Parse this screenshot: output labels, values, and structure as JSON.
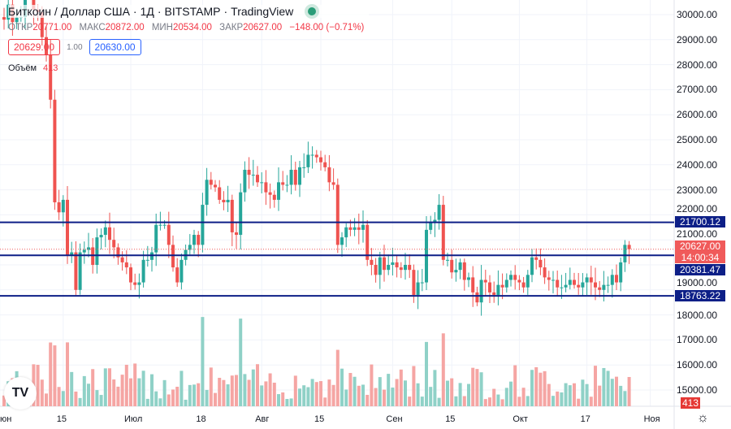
{
  "header": {
    "title": "Биткоин / Доллар США",
    "interval": "1Д",
    "exchange": "BITSTAMP",
    "source": "TradingView",
    "sep": "·"
  },
  "ohlc": {
    "open_label": "ОТКР",
    "open": "20771.00",
    "high_label": "МАКС",
    "high": "20872.00",
    "low_label": "МИН",
    "low": "20534.00",
    "close_label": "ЗАКР",
    "close": "20627.00",
    "change": "−148.00 (−0.71%)"
  },
  "quote": {
    "sell": "20629.00",
    "spread": "1.00",
    "buy": "20630.00"
  },
  "volume": {
    "label": "Объём",
    "value": "413",
    "axis_value": "413"
  },
  "price_axis": [
    "30000.00",
    "29000.00",
    "28000.00",
    "27000.00",
    "26000.00",
    "25000.00",
    "24000.00",
    "23000.00",
    "22000.00",
    "21000.00",
    "19000.00",
    "18000.00",
    "17000.00",
    "16000.00",
    "15000.00"
  ],
  "levels": [
    {
      "price": 21700.12,
      "label": "21700.12"
    },
    {
      "price": 20381.47,
      "label": "20381.47"
    },
    {
      "price": 18763.22,
      "label": "18763.22"
    }
  ],
  "last_price": {
    "price": 20627,
    "label": "20627.00",
    "countdown": "14:00:34"
  },
  "time_axis": [
    {
      "label": "юн",
      "day": -1
    },
    {
      "label": "15",
      "day": 14
    },
    {
      "label": "Июл",
      "day": 30
    },
    {
      "label": "18",
      "day": 47
    },
    {
      "label": "Авг",
      "day": 61
    },
    {
      "label": "15",
      "day": 75
    },
    {
      "label": "Сен",
      "day": 92
    },
    {
      "label": "15",
      "day": 106
    },
    {
      "label": "Окт",
      "day": 122
    },
    {
      "label": "17",
      "day": 138
    },
    {
      "label": "Ноя",
      "day": 153
    }
  ],
  "colors": {
    "up": "#26a69a",
    "down": "#ef5350",
    "level": "#0d1f87"
  },
  "chart_data": {
    "type": "candlestick",
    "start_close": 29900,
    "closes": [
      29800,
      30400,
      29700,
      29900,
      29900,
      31300,
      31100,
      30200,
      30100,
      29100,
      28400,
      26600,
      22500,
      22100,
      22600,
      20400,
      20500,
      19000,
      20500,
      20600,
      20700,
      20000,
      21100,
      21200,
      21500,
      21000,
      20700,
      20300,
      20100,
      19900,
      19300,
      19200,
      19300,
      20200,
      20200,
      20500,
      21600,
      21600,
      21600,
      20800,
      19900,
      19300,
      20200,
      20600,
      20800,
      21200,
      20800,
      22400,
      23400,
      23200,
      23100,
      22600,
      22500,
      22600,
      21300,
      21200,
      22900,
      23800,
      23600,
      23600,
      23300,
      23300,
      22900,
      22800,
      22600,
      23300,
      23200,
      23200,
      23800,
      23200,
      23900,
      23900,
      24400,
      24400,
      24300,
      24100,
      23900,
      23300,
      23200,
      20800,
      21100,
      21500,
      21400,
      21500,
      21400,
      21600,
      20200,
      20000,
      19600,
      20300,
      19800,
      20000,
      20100,
      19900,
      19800,
      20000,
      19800,
      18800,
      19300,
      19300,
      21400,
      21700,
      21800,
      22400,
      20200,
      20200,
      19700,
      19800,
      20100,
      19400,
      19500,
      18900,
      18500,
      19400,
      19300,
      18900,
      18800,
      19200,
      19100,
      19400,
      19600,
      19400,
      19300,
      19100,
      19600,
      20300,
      20200,
      19900,
      19500,
      19400,
      19400,
      19100,
      19100,
      19200,
      19400,
      19200,
      19100,
      19300,
      19500,
      19300,
      19100,
      19000,
      19200,
      19200,
      19600,
      19300,
      20100,
      20800,
      20627
    ]
  }
}
